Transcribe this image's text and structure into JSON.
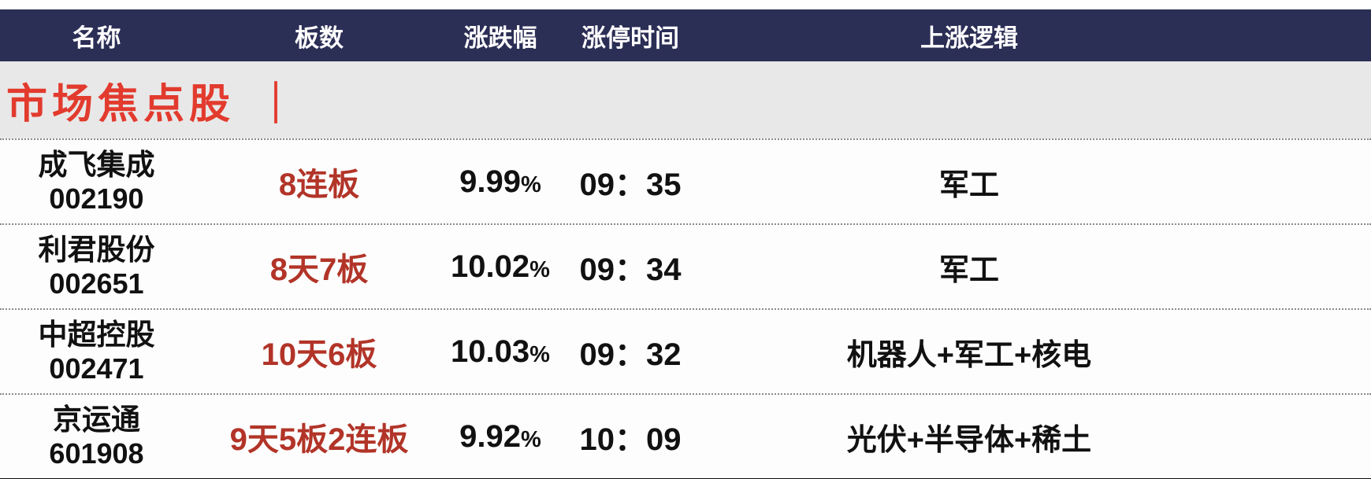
{
  "table": {
    "columns": [
      {
        "label": "名称"
      },
      {
        "label": "板数"
      },
      {
        "label": "涨跌幅"
      },
      {
        "label": "涨停时间"
      },
      {
        "label": "上涨逻辑"
      }
    ],
    "section_title": "市场焦点股",
    "section_divider": "｜",
    "rows": [
      {
        "name": "成飞集成",
        "code": "002190",
        "boards": "8连板",
        "change": "9.99",
        "change_unit": "%",
        "time": "09：35",
        "logic": "军工"
      },
      {
        "name": "利君股份",
        "code": "002651",
        "boards": "8天7板",
        "change": "10.02",
        "change_unit": "%",
        "time": "09：34",
        "logic": "军工"
      },
      {
        "name": "中超控股",
        "code": "002471",
        "boards": "10天6板",
        "change": "10.03",
        "change_unit": "%",
        "time": "09：32",
        "logic": "机器人+军工+核电"
      },
      {
        "name": "京运通",
        "code": "601908",
        "boards": "9天5板2连板",
        "change": "9.92",
        "change_unit": "%",
        "time": "10：09",
        "logic": "光伏+半导体+稀土"
      }
    ],
    "colors": {
      "header_bg": "#2b2e55",
      "section_bg": "#e8e8e8",
      "title_red": "#e23b2e",
      "boards_red": "#b23428"
    }
  }
}
